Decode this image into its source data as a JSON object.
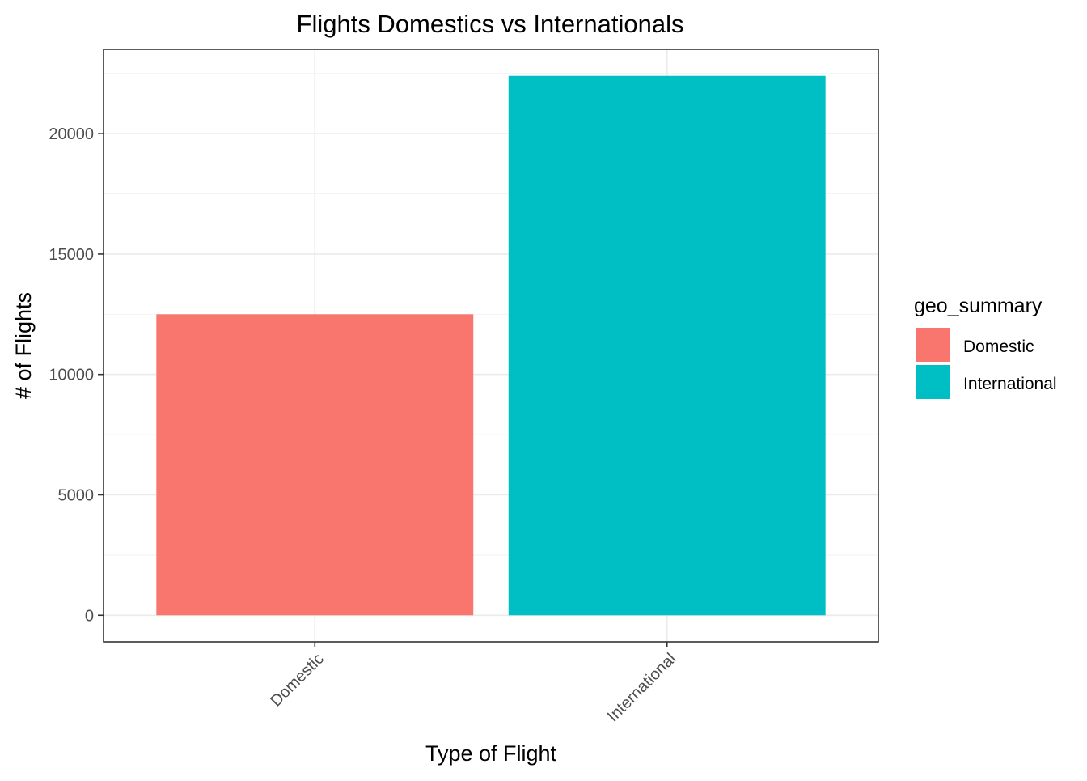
{
  "chart_data": {
    "type": "bar",
    "title": "Flights Domestics vs Internationals",
    "xlabel": "Type of Flight",
    "ylabel": "# of Flights",
    "categories": [
      "Domestic",
      "International"
    ],
    "values": [
      12500,
      22400
    ],
    "colors": [
      "#F8766D",
      "#00BFC4"
    ],
    "ylim": [
      -1100,
      23500
    ],
    "yticks": [
      0,
      5000,
      10000,
      15000,
      20000
    ],
    "grid": true,
    "legend": {
      "title": "geo_summary",
      "position": "right",
      "entries": [
        {
          "label": "Domestic",
          "color": "#F8766D"
        },
        {
          "label": "International",
          "color": "#00BFC4"
        }
      ]
    }
  }
}
